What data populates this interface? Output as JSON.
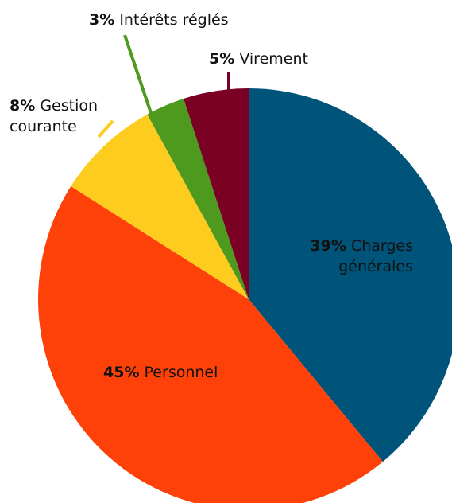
{
  "chart_data": {
    "type": "pie",
    "categories": [
      "Charges générales",
      "Personnel",
      "Gestion courante",
      "Intérêts réglés",
      "Virement"
    ],
    "values": [
      39,
      45,
      8,
      3,
      5
    ],
    "value_labels": [
      "39%",
      "45%",
      "8%",
      "3%",
      "5%"
    ],
    "colors": [
      "#005379",
      "#fe4109",
      "#fecb1f",
      "#4e9a1f",
      "#7a0024"
    ]
  }
}
